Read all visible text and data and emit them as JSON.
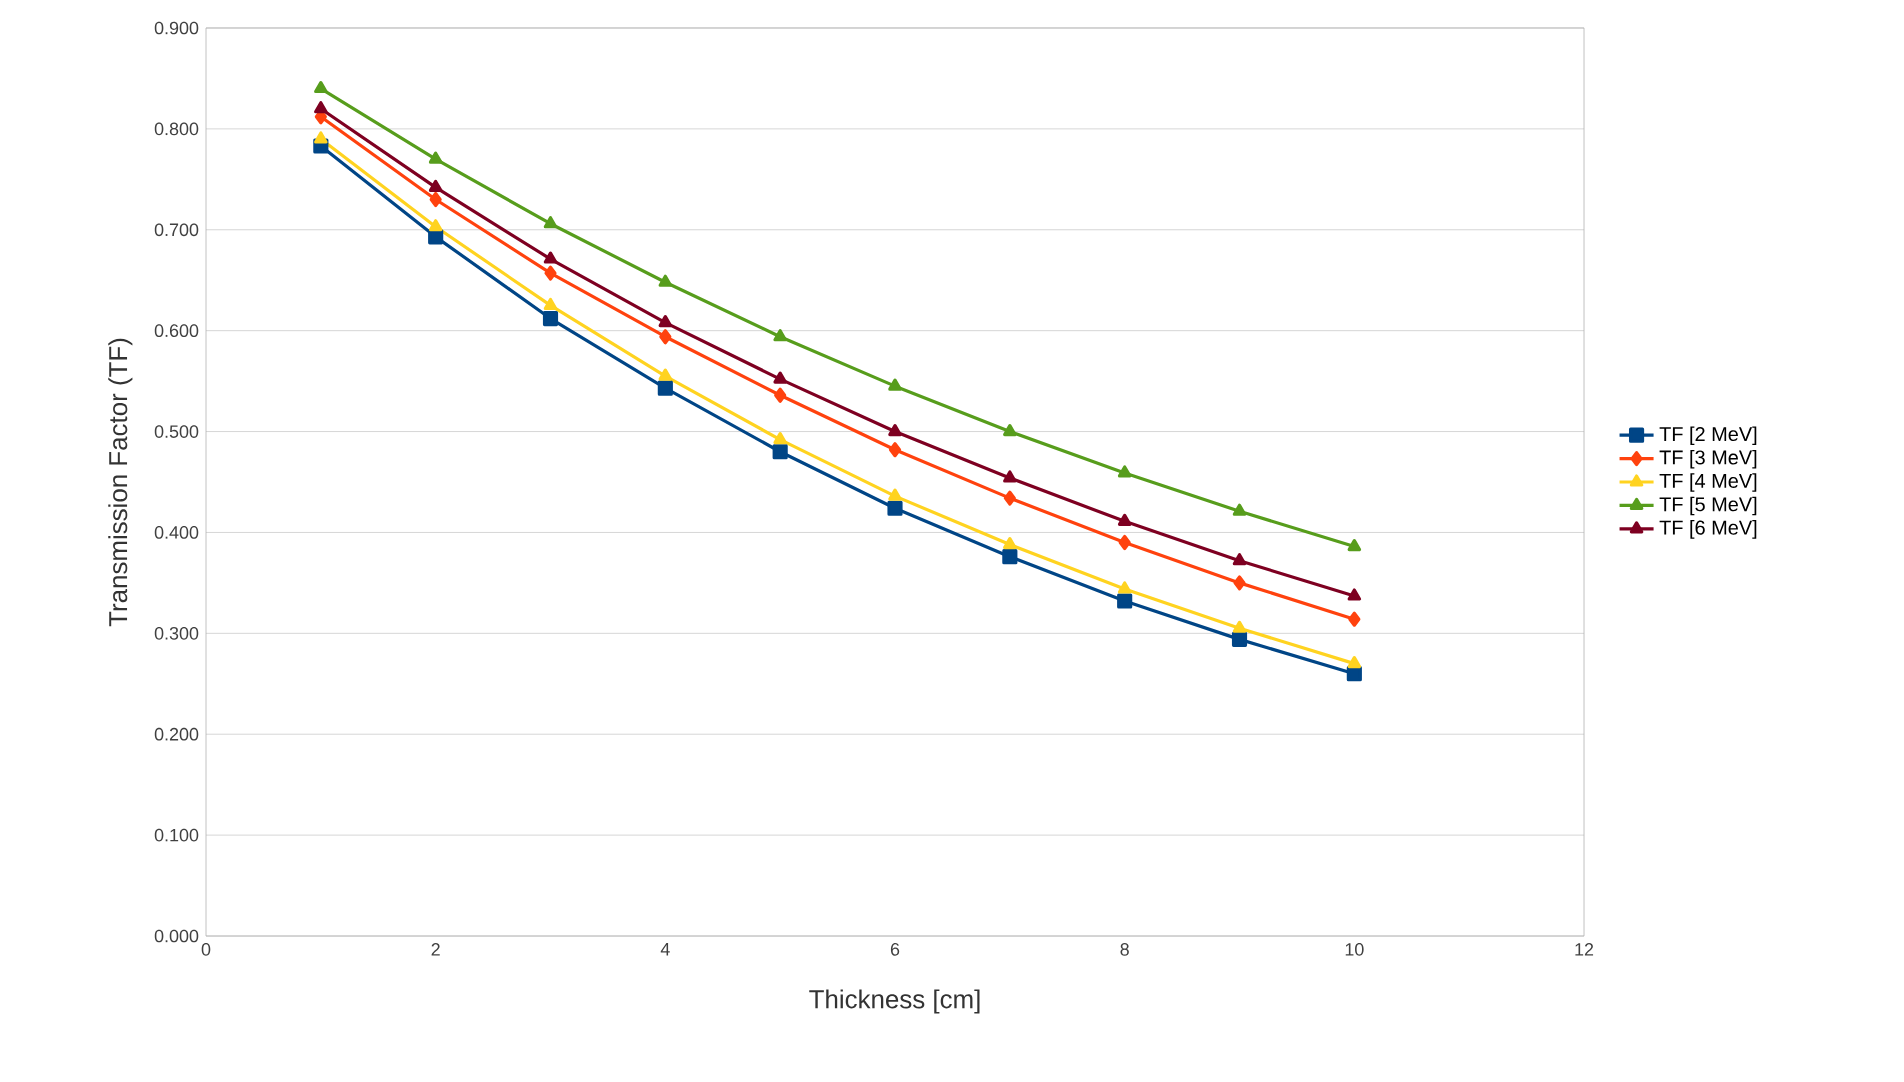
{
  "chart_data": {
    "type": "line",
    "xlabel": "Thickness [cm]",
    "ylabel": "Transmission Factor (TF)",
    "x": [
      1,
      2,
      3,
      4,
      5,
      6,
      7,
      8,
      9,
      10
    ],
    "series": [
      {
        "name": "TF [2 MeV]",
        "color": "#004586",
        "marker": "square",
        "values": [
          0.783,
          0.693,
          0.612,
          0.543,
          0.48,
          0.424,
          0.376,
          0.332,
          0.294,
          0.26
        ]
      },
      {
        "name": "TF [3 MeV]",
        "color": "#ff420e",
        "marker": "diamond",
        "values": [
          0.812,
          0.73,
          0.657,
          0.594,
          0.536,
          0.482,
          0.434,
          0.39,
          0.35,
          0.314
        ]
      },
      {
        "name": "TF [4 MeV]",
        "color": "#ffd320",
        "marker": "triangle",
        "values": [
          0.79,
          0.703,
          0.625,
          0.555,
          0.492,
          0.436,
          0.388,
          0.344,
          0.305,
          0.27
        ]
      },
      {
        "name": "TF [5 MeV]",
        "color": "#579d1c",
        "marker": "triangle",
        "values": [
          0.84,
          0.77,
          0.706,
          0.648,
          0.594,
          0.545,
          0.5,
          0.459,
          0.421,
          0.386
        ]
      },
      {
        "name": "TF [6 MeV]",
        "color": "#7e0021",
        "marker": "triangle",
        "values": [
          0.82,
          0.742,
          0.671,
          0.608,
          0.552,
          0.5,
          0.454,
          0.411,
          0.372,
          0.337
        ]
      }
    ],
    "xlim": [
      0,
      12
    ],
    "xticks": [
      0,
      2,
      4,
      6,
      8,
      10,
      12
    ],
    "ylim": [
      0,
      0.9
    ],
    "yticks": [
      {
        "value": 0,
        "label": "0.000"
      },
      {
        "value": 0.1,
        "label": "0.100"
      },
      {
        "value": 0.2,
        "label": "0.200"
      },
      {
        "value": 0.3,
        "label": "0.300"
      },
      {
        "value": 0.4,
        "label": "0.400"
      },
      {
        "value": 0.5,
        "label": "0.500"
      },
      {
        "value": 0.6,
        "label": "0.600"
      },
      {
        "value": 0.7,
        "label": "0.700"
      },
      {
        "value": 0.8,
        "label": "0.800"
      },
      {
        "value": 0.9,
        "label": "0.900"
      }
    ],
    "grid": "y",
    "legend": "right",
    "line_style": "solid"
  }
}
